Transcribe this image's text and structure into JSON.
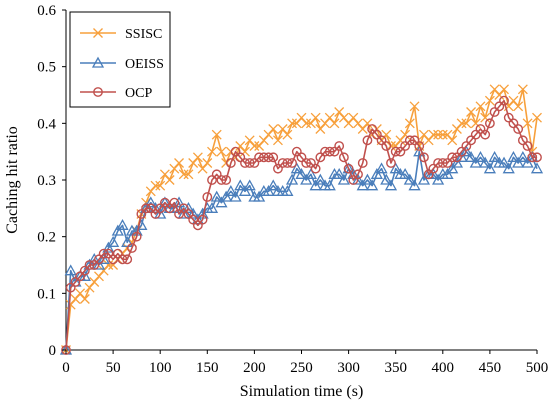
{
  "chart_data": {
    "type": "line",
    "title": "",
    "xlabel": "Simulation time (s)",
    "ylabel": "Caching hit ratio",
    "xlim": [
      0,
      500
    ],
    "ylim": [
      0,
      0.6
    ],
    "xticks": [
      0,
      50,
      100,
      150,
      200,
      250,
      300,
      350,
      400,
      450,
      500
    ],
    "yticks": [
      0,
      0.1,
      0.2,
      0.3,
      0.4,
      0.5,
      0.6
    ],
    "ytick_labels": [
      "0",
      "0.1",
      "0.2",
      "0.3",
      "0.4",
      "0.5",
      "0.6"
    ],
    "grid": false,
    "legend_position": "top-left",
    "x": [
      0,
      5,
      10,
      15,
      20,
      25,
      30,
      35,
      40,
      45,
      50,
      55,
      60,
      65,
      70,
      75,
      80,
      85,
      90,
      95,
      100,
      105,
      110,
      115,
      120,
      125,
      130,
      135,
      140,
      145,
      150,
      155,
      160,
      165,
      170,
      175,
      180,
      185,
      190,
      195,
      200,
      205,
      210,
      215,
      220,
      225,
      230,
      235,
      240,
      245,
      250,
      255,
      260,
      265,
      270,
      275,
      280,
      285,
      290,
      295,
      300,
      305,
      310,
      315,
      320,
      325,
      330,
      335,
      340,
      345,
      350,
      355,
      360,
      365,
      370,
      375,
      380,
      385,
      390,
      395,
      400,
      405,
      410,
      415,
      420,
      425,
      430,
      435,
      440,
      445,
      450,
      455,
      460,
      465,
      470,
      475,
      480,
      485,
      490,
      495,
      500
    ],
    "series": [
      {
        "name": "SSISC",
        "color": "#F7A03C",
        "marker": "x",
        "values": [
          0.0,
          0.08,
          0.09,
          0.1,
          0.09,
          0.11,
          0.12,
          0.13,
          0.14,
          0.15,
          0.15,
          0.16,
          0.17,
          0.18,
          0.19,
          0.21,
          0.24,
          0.26,
          0.28,
          0.29,
          0.29,
          0.31,
          0.3,
          0.32,
          0.33,
          0.31,
          0.31,
          0.33,
          0.34,
          0.32,
          0.33,
          0.35,
          0.38,
          0.35,
          0.33,
          0.35,
          0.34,
          0.36,
          0.35,
          0.37,
          0.36,
          0.36,
          0.37,
          0.38,
          0.39,
          0.37,
          0.39,
          0.38,
          0.4,
          0.4,
          0.41,
          0.4,
          0.4,
          0.41,
          0.39,
          0.4,
          0.41,
          0.4,
          0.42,
          0.41,
          0.4,
          0.41,
          0.4,
          0.39,
          0.4,
          0.38,
          0.39,
          0.37,
          0.38,
          0.36,
          0.36,
          0.37,
          0.38,
          0.4,
          0.43,
          0.36,
          0.38,
          0.37,
          0.38,
          0.38,
          0.38,
          0.38,
          0.37,
          0.39,
          0.4,
          0.4,
          0.42,
          0.4,
          0.43,
          0.41,
          0.44,
          0.46,
          0.45,
          0.46,
          0.43,
          0.44,
          0.43,
          0.46,
          0.4,
          0.35,
          0.41
        ]
      },
      {
        "name": "OEISS",
        "color": "#4A7EBB",
        "marker": "triangle",
        "values": [
          0.0,
          0.14,
          0.12,
          0.13,
          0.13,
          0.15,
          0.16,
          0.15,
          0.16,
          0.18,
          0.19,
          0.21,
          0.22,
          0.19,
          0.21,
          0.21,
          0.22,
          0.25,
          0.26,
          0.25,
          0.24,
          0.26,
          0.25,
          0.25,
          0.26,
          0.24,
          0.25,
          0.24,
          0.23,
          0.24,
          0.25,
          0.25,
          0.27,
          0.26,
          0.27,
          0.28,
          0.27,
          0.29,
          0.28,
          0.29,
          0.27,
          0.27,
          0.28,
          0.28,
          0.29,
          0.28,
          0.28,
          0.28,
          0.3,
          0.32,
          0.31,
          0.3,
          0.31,
          0.29,
          0.3,
          0.29,
          0.29,
          0.31,
          0.31,
          0.3,
          0.32,
          0.31,
          0.3,
          0.29,
          0.3,
          0.29,
          0.31,
          0.32,
          0.3,
          0.29,
          0.32,
          0.31,
          0.31,
          0.3,
          0.29,
          0.35,
          0.3,
          0.31,
          0.31,
          0.3,
          0.31,
          0.31,
          0.32,
          0.33,
          0.34,
          0.35,
          0.34,
          0.33,
          0.34,
          0.33,
          0.32,
          0.34,
          0.33,
          0.33,
          0.32,
          0.34,
          0.33,
          0.34,
          0.33,
          0.34,
          0.32
        ]
      },
      {
        "name": "OCP",
        "color": "#C0504D",
        "marker": "circle",
        "values": [
          0.0,
          0.11,
          0.12,
          0.13,
          0.14,
          0.15,
          0.15,
          0.16,
          0.17,
          0.17,
          0.16,
          0.17,
          0.16,
          0.16,
          0.18,
          0.2,
          0.24,
          0.25,
          0.25,
          0.24,
          0.25,
          0.26,
          0.25,
          0.26,
          0.24,
          0.25,
          0.24,
          0.23,
          0.22,
          0.23,
          0.27,
          0.3,
          0.31,
          0.3,
          0.3,
          0.33,
          0.35,
          0.34,
          0.33,
          0.33,
          0.33,
          0.34,
          0.34,
          0.34,
          0.34,
          0.32,
          0.33,
          0.33,
          0.33,
          0.35,
          0.34,
          0.33,
          0.33,
          0.32,
          0.34,
          0.35,
          0.35,
          0.35,
          0.36,
          0.34,
          0.32,
          0.3,
          0.31,
          0.33,
          0.37,
          0.39,
          0.38,
          0.37,
          0.36,
          0.33,
          0.35,
          0.35,
          0.36,
          0.37,
          0.37,
          0.36,
          0.34,
          0.31,
          0.32,
          0.33,
          0.33,
          0.33,
          0.34,
          0.34,
          0.35,
          0.36,
          0.37,
          0.38,
          0.39,
          0.38,
          0.4,
          0.42,
          0.43,
          0.44,
          0.41,
          0.4,
          0.39,
          0.37,
          0.36,
          0.34,
          0.34
        ]
      }
    ]
  }
}
